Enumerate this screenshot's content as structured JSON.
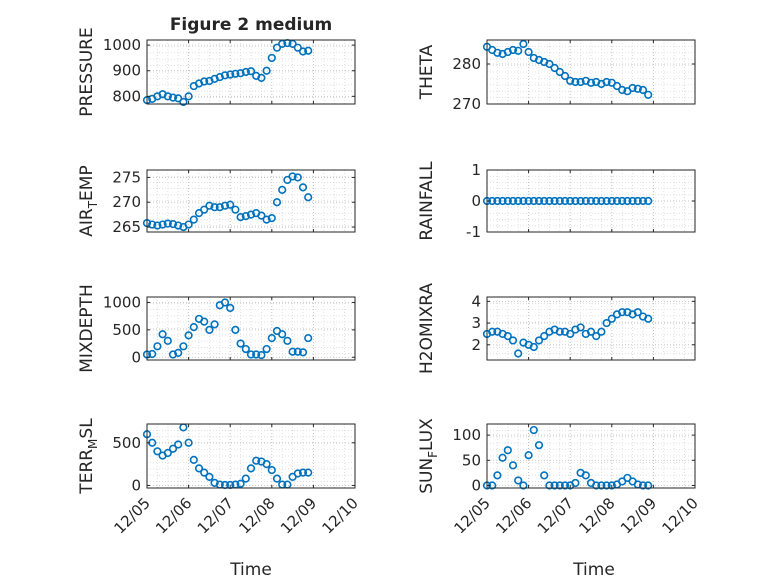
{
  "figure": {
    "title": "Figure 2 medium",
    "xlabel": "Time",
    "x_ticks": [
      "12/05",
      "12/06",
      "12/07",
      "12/08",
      "12/09",
      "12/10"
    ],
    "marker_color": "#0072BD",
    "axis_color": "#262626",
    "grid_color": "#d9d9d9"
  },
  "chart_data": [
    {
      "type": "scatter",
      "ylabel": "PRESSURE",
      "ylim": [
        770,
        1020
      ],
      "yticks": [
        "800",
        "900",
        "1000"
      ],
      "ytick_values": [
        800,
        900,
        1000
      ],
      "x": [
        "12/05 00:00",
        "12/05 03:00",
        "12/05 06:00",
        "12/05 09:00",
        "12/05 12:00",
        "12/05 15:00",
        "12/05 18:00",
        "12/05 21:00",
        "12/06 00:00",
        "12/06 03:00",
        "12/06 06:00",
        "12/06 09:00",
        "12/06 12:00",
        "12/06 15:00",
        "12/06 18:00",
        "12/06 21:00",
        "12/07 00:00",
        "12/07 03:00",
        "12/07 06:00",
        "12/07 09:00",
        "12/07 12:00",
        "12/07 15:00",
        "12/07 18:00",
        "12/07 21:00",
        "12/08 00:00",
        "12/08 03:00",
        "12/08 06:00",
        "12/08 09:00",
        "12/08 12:00",
        "12/08 15:00",
        "12/08 18:00",
        "12/08 21:00"
      ],
      "values": [
        785,
        790,
        800,
        808,
        800,
        795,
        792,
        778,
        800,
        840,
        850,
        858,
        860,
        868,
        875,
        882,
        885,
        888,
        890,
        895,
        898,
        880,
        872,
        900,
        950,
        990,
        1005,
        1008,
        1005,
        990,
        975,
        978
      ]
    },
    {
      "type": "scatter",
      "ylabel": "THETA",
      "ylim": [
        270,
        286
      ],
      "yticks": [
        "270",
        "280"
      ],
      "ytick_values": [
        270,
        280
      ],
      "x": [
        "12/05 00:00",
        "12/05 03:00",
        "12/05 06:00",
        "12/05 09:00",
        "12/05 12:00",
        "12/05 15:00",
        "12/05 18:00",
        "12/05 21:00",
        "12/06 00:00",
        "12/06 03:00",
        "12/06 06:00",
        "12/06 09:00",
        "12/06 12:00",
        "12/06 15:00",
        "12/06 18:00",
        "12/06 21:00",
        "12/07 00:00",
        "12/07 03:00",
        "12/07 06:00",
        "12/07 09:00",
        "12/07 12:00",
        "12/07 15:00",
        "12/07 18:00",
        "12/07 21:00",
        "12/08 00:00",
        "12/08 03:00",
        "12/08 06:00",
        "12/08 09:00",
        "12/08 12:00",
        "12/08 15:00",
        "12/08 18:00",
        "12/08 21:00"
      ],
      "values": [
        284.3,
        283.5,
        282.8,
        282.5,
        283.0,
        283.5,
        283.3,
        285.0,
        283.0,
        281.5,
        281.0,
        280.5,
        280.0,
        279.0,
        278.0,
        277.0,
        275.8,
        275.5,
        275.5,
        275.8,
        275.3,
        275.5,
        275.0,
        275.5,
        275.3,
        274.5,
        273.5,
        273.2,
        274.0,
        273.8,
        273.5,
        272.3
      ]
    },
    {
      "type": "scatter",
      "ylabel": "AIR_TEMP",
      "ylim": [
        264,
        276.5
      ],
      "yticks": [
        "265",
        "270",
        "275"
      ],
      "ytick_values": [
        265,
        270,
        275
      ],
      "x": [
        "12/05 00:00",
        "12/05 03:00",
        "12/05 06:00",
        "12/05 09:00",
        "12/05 12:00",
        "12/05 15:00",
        "12/05 18:00",
        "12/05 21:00",
        "12/06 00:00",
        "12/06 03:00",
        "12/06 06:00",
        "12/06 09:00",
        "12/06 12:00",
        "12/06 15:00",
        "12/06 18:00",
        "12/06 21:00",
        "12/07 00:00",
        "12/07 03:00",
        "12/07 06:00",
        "12/07 09:00",
        "12/07 12:00",
        "12/07 15:00",
        "12/07 18:00",
        "12/07 21:00",
        "12/08 00:00",
        "12/08 03:00",
        "12/08 06:00",
        "12/08 09:00",
        "12/08 12:00",
        "12/08 15:00",
        "12/08 18:00",
        "12/08 21:00"
      ],
      "values": [
        265.8,
        265.5,
        265.3,
        265.5,
        265.7,
        265.6,
        265.3,
        265.0,
        265.5,
        266.5,
        267.8,
        268.5,
        269.3,
        269.0,
        269.0,
        269.3,
        269.5,
        268.5,
        267.0,
        267.2,
        267.5,
        267.8,
        267.3,
        266.5,
        266.8,
        270.0,
        272.5,
        274.5,
        275.2,
        275.0,
        273.0,
        271.0
      ]
    },
    {
      "type": "scatter",
      "ylabel": "RAINFALL",
      "ylim": [
        -1,
        1
      ],
      "yticks": [
        "-1",
        "0",
        "1"
      ],
      "ytick_values": [
        -1,
        0,
        1
      ],
      "x": [
        "12/05 00:00",
        "12/05 03:00",
        "12/05 06:00",
        "12/05 09:00",
        "12/05 12:00",
        "12/05 15:00",
        "12/05 18:00",
        "12/05 21:00",
        "12/06 00:00",
        "12/06 03:00",
        "12/06 06:00",
        "12/06 09:00",
        "12/06 12:00",
        "12/06 15:00",
        "12/06 18:00",
        "12/06 21:00",
        "12/07 00:00",
        "12/07 03:00",
        "12/07 06:00",
        "12/07 09:00",
        "12/07 12:00",
        "12/07 15:00",
        "12/07 18:00",
        "12/07 21:00",
        "12/08 00:00",
        "12/08 03:00",
        "12/08 06:00",
        "12/08 09:00",
        "12/08 12:00",
        "12/08 15:00",
        "12/08 18:00",
        "12/08 21:00"
      ],
      "values": [
        0,
        0,
        0,
        0,
        0,
        0,
        0,
        0,
        0,
        0,
        0,
        0,
        0,
        0,
        0,
        0,
        0,
        0,
        0,
        0,
        0,
        0,
        0,
        0,
        0,
        0,
        0,
        0,
        0,
        0,
        0,
        0
      ]
    },
    {
      "type": "scatter",
      "ylabel": "MIXDEPTH",
      "ylim": [
        -50,
        1100
      ],
      "yticks": [
        "0",
        "500",
        "1000"
      ],
      "ytick_values": [
        0,
        500,
        1000
      ],
      "x": [
        "12/05 00:00",
        "12/05 03:00",
        "12/05 06:00",
        "12/05 09:00",
        "12/05 12:00",
        "12/05 15:00",
        "12/05 18:00",
        "12/05 21:00",
        "12/06 00:00",
        "12/06 03:00",
        "12/06 06:00",
        "12/06 09:00",
        "12/06 12:00",
        "12/06 15:00",
        "12/06 18:00",
        "12/06 21:00",
        "12/07 00:00",
        "12/07 03:00",
        "12/07 06:00",
        "12/07 09:00",
        "12/07 12:00",
        "12/07 15:00",
        "12/07 18:00",
        "12/07 21:00",
        "12/08 00:00",
        "12/08 03:00",
        "12/08 06:00",
        "12/08 09:00",
        "12/08 12:00",
        "12/08 15:00",
        "12/08 18:00",
        "12/08 21:00"
      ],
      "values": [
        50,
        60,
        200,
        420,
        300,
        50,
        80,
        200,
        400,
        550,
        700,
        650,
        500,
        600,
        950,
        1000,
        900,
        500,
        250,
        150,
        50,
        50,
        40,
        150,
        350,
        480,
        420,
        300,
        100,
        100,
        90,
        350
      ]
    },
    {
      "type": "scatter",
      "ylabel": "H2OMIXRA",
      "ylim": [
        1.3,
        4.2
      ],
      "yticks": [
        "2",
        "3",
        "4"
      ],
      "ytick_values": [
        2,
        3,
        4
      ],
      "x": [
        "12/05 00:00",
        "12/05 03:00",
        "12/05 06:00",
        "12/05 09:00",
        "12/05 12:00",
        "12/05 15:00",
        "12/05 18:00",
        "12/05 21:00",
        "12/06 00:00",
        "12/06 03:00",
        "12/06 06:00",
        "12/06 09:00",
        "12/06 12:00",
        "12/06 15:00",
        "12/06 18:00",
        "12/06 21:00",
        "12/07 00:00",
        "12/07 03:00",
        "12/07 06:00",
        "12/07 09:00",
        "12/07 12:00",
        "12/07 15:00",
        "12/07 18:00",
        "12/07 21:00",
        "12/08 00:00",
        "12/08 03:00",
        "12/08 06:00",
        "12/08 09:00",
        "12/08 12:00",
        "12/08 15:00",
        "12/08 18:00",
        "12/08 21:00"
      ],
      "values": [
        2.5,
        2.6,
        2.6,
        2.5,
        2.4,
        2.2,
        1.6,
        2.1,
        2.0,
        1.9,
        2.2,
        2.4,
        2.6,
        2.7,
        2.6,
        2.6,
        2.5,
        2.7,
        2.8,
        2.5,
        2.6,
        2.4,
        2.6,
        3.0,
        3.2,
        3.4,
        3.5,
        3.5,
        3.4,
        3.5,
        3.3,
        3.2
      ]
    },
    {
      "type": "scatter",
      "ylabel": "TERR_MSL",
      "ylim": [
        -30,
        720
      ],
      "yticks": [
        "0",
        "500"
      ],
      "ytick_values": [
        0,
        500
      ],
      "x": [
        "12/05 00:00",
        "12/05 03:00",
        "12/05 06:00",
        "12/05 09:00",
        "12/05 12:00",
        "12/05 15:00",
        "12/05 18:00",
        "12/05 21:00",
        "12/06 00:00",
        "12/06 03:00",
        "12/06 06:00",
        "12/06 09:00",
        "12/06 12:00",
        "12/06 15:00",
        "12/06 18:00",
        "12/06 21:00",
        "12/07 00:00",
        "12/07 03:00",
        "12/07 06:00",
        "12/07 09:00",
        "12/07 12:00",
        "12/07 15:00",
        "12/07 18:00",
        "12/07 21:00",
        "12/08 00:00",
        "12/08 03:00",
        "12/08 06:00",
        "12/08 09:00",
        "12/08 12:00",
        "12/08 15:00",
        "12/08 18:00",
        "12/08 21:00"
      ],
      "values": [
        600,
        500,
        400,
        350,
        380,
        430,
        480,
        680,
        500,
        300,
        200,
        150,
        100,
        30,
        10,
        5,
        5,
        10,
        20,
        80,
        200,
        290,
        280,
        250,
        180,
        80,
        10,
        10,
        100,
        140,
        150,
        150
      ]
    },
    {
      "type": "scatter",
      "ylabel": "SUN_FLUX",
      "ylim": [
        -5,
        122
      ],
      "yticks": [
        "0",
        "50",
        "100"
      ],
      "ytick_values": [
        0,
        50,
        100
      ],
      "x": [
        "12/05 00:00",
        "12/05 03:00",
        "12/05 06:00",
        "12/05 09:00",
        "12/05 12:00",
        "12/05 15:00",
        "12/05 18:00",
        "12/05 21:00",
        "12/06 00:00",
        "12/06 03:00",
        "12/06 06:00",
        "12/06 09:00",
        "12/06 12:00",
        "12/06 15:00",
        "12/06 18:00",
        "12/06 21:00",
        "12/07 00:00",
        "12/07 03:00",
        "12/07 06:00",
        "12/07 09:00",
        "12/07 12:00",
        "12/07 15:00",
        "12/07 18:00",
        "12/07 21:00",
        "12/08 00:00",
        "12/08 03:00",
        "12/08 06:00",
        "12/08 09:00",
        "12/08 12:00",
        "12/08 15:00",
        "12/08 18:00",
        "12/08 21:00"
      ],
      "values": [
        0,
        0,
        20,
        55,
        70,
        40,
        10,
        0,
        60,
        110,
        80,
        20,
        0,
        0,
        0,
        0,
        0,
        5,
        25,
        20,
        5,
        0,
        0,
        0,
        0,
        2,
        8,
        15,
        8,
        2,
        0,
        0
      ]
    }
  ]
}
